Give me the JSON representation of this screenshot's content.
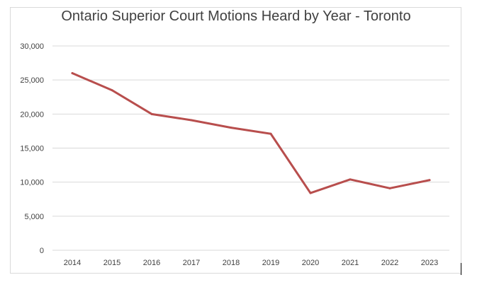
{
  "chart_data": {
    "type": "line",
    "title": "Ontario Superior Court Motions Heard by Year - Toronto",
    "xlabel": "",
    "ylabel": "",
    "categories": [
      "2014",
      "2015",
      "2016",
      "2017",
      "2018",
      "2019",
      "2020",
      "2021",
      "2022",
      "2023"
    ],
    "series": [
      {
        "values": [
          26000,
          23500,
          20000,
          19100,
          18000,
          17100,
          8400,
          10400,
          9100,
          10300
        ]
      }
    ],
    "ylim": [
      0,
      30000
    ],
    "yticks": [
      0,
      5000,
      10000,
      15000,
      20000,
      25000,
      30000
    ],
    "ytick_labels": [
      "0",
      "5,000",
      "10,000",
      "15,000",
      "20,000",
      "25,000",
      "30,000"
    ],
    "grid": true,
    "legend": "none",
    "colors": {
      "line": "#b84e4d",
      "grid": "#d9d9d9",
      "text": "#404040"
    }
  }
}
